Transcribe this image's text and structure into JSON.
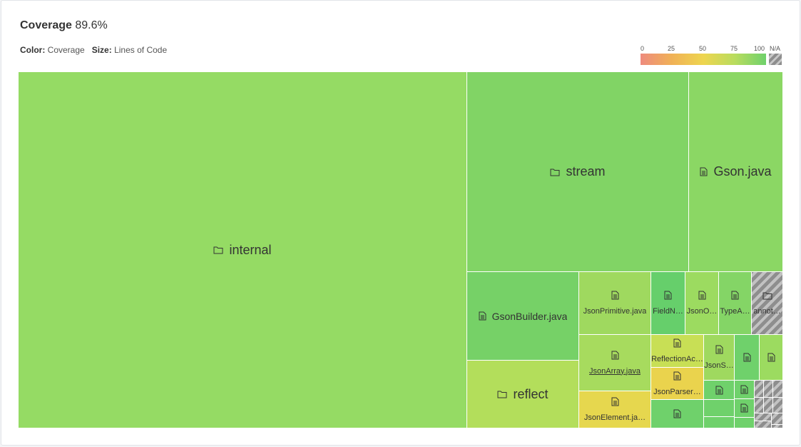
{
  "header": {
    "title_label": "Coverage",
    "title_value": "89.6%",
    "color_label": "Color:",
    "color_value": "Coverage",
    "size_label": "Size:",
    "size_value": "Lines of Code"
  },
  "legend": {
    "ticks": [
      "0",
      "25",
      "50",
      "75",
      "100"
    ],
    "na_label": "N/A",
    "gradient_colors": [
      "#ee8b7e",
      "#f0b156",
      "#eed54f",
      "#b9dc5e",
      "#6fd16b"
    ]
  },
  "treemap": {
    "internal": "internal",
    "stream": "stream",
    "gson": "Gson.java",
    "gsonbuilder": "GsonBuilder.java",
    "reflect": "reflect",
    "jsonprimitive": "JsonPrimitive.java",
    "fieldn": "FieldN…",
    "jsono": "JsonO…",
    "typea": "TypeA…",
    "annot": "annot…",
    "jsonarray": "JsonArray.java",
    "reflectionac": "ReflectionAc…",
    "jsons": "JsonS…",
    "jsonparser": "JsonParser…",
    "jsonelement": "JsonElement.ja…"
  },
  "colors": {
    "internal": "#95db64",
    "stream": "#81d465",
    "gson": "#8bd764",
    "gsonbuilder": "#76d167",
    "reflect": "#b3de5b",
    "jsonprimitive": "#9fd95f",
    "fieldn": "#66cf6b",
    "jsono": "#9cdb60",
    "typea": "#84d566",
    "jsonarray": "#a7db5e",
    "reflectionac": "#c8df55",
    "jsonparser": "#ead34d",
    "jsonelement": "#e6d74e",
    "green": "#6fd16b"
  }
}
